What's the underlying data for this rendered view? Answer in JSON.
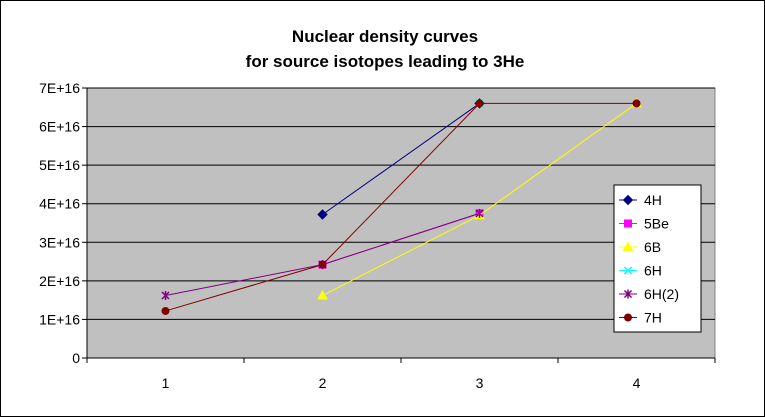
{
  "chart_data": {
    "type": "line",
    "title": [
      "Nuclear density curves",
      "for source isotopes leading to 3He"
    ],
    "categories": [
      "1",
      "2",
      "3",
      "4"
    ],
    "ylim": [
      0,
      7e+16
    ],
    "yticks": [
      0,
      1e+16,
      2e+16,
      3e+16,
      4e+16,
      5e+16,
      6e+16,
      7e+16
    ],
    "ytick_labels": [
      "0",
      "1E+16",
      "2E+16",
      "3E+16",
      "4E+16",
      "5E+16",
      "6E+16",
      "7E+16"
    ],
    "grid": "horizontal",
    "plot_background": "#C0C0C0",
    "legend_position": "right",
    "series": [
      {
        "name": "4H",
        "color": "#000080",
        "marker": "diamond",
        "values": [
          null,
          3.72e+16,
          6.6e+16,
          null
        ]
      },
      {
        "name": "5Be",
        "color": "#FF00FF",
        "marker": "square",
        "values": [
          null,
          2.42e+16,
          3.75e+16,
          null
        ]
      },
      {
        "name": "6B",
        "color": "#FFFF00",
        "marker": "triangle",
        "values": [
          null,
          1.62e+16,
          3.7e+16,
          6.6e+16
        ]
      },
      {
        "name": "6H",
        "color": "#00FFFF",
        "marker": "x",
        "values": [
          null,
          null,
          6.6e+16,
          null
        ]
      },
      {
        "name": "6H(2)",
        "color": "#800080",
        "marker": "star",
        "values": [
          1.62e+16,
          2.42e+16,
          3.75e+16,
          null
        ]
      },
      {
        "name": "7H",
        "color": "#800000",
        "marker": "circle",
        "values": [
          1.22e+16,
          2.42e+16,
          6.6e+16,
          6.6e+16
        ]
      }
    ]
  }
}
